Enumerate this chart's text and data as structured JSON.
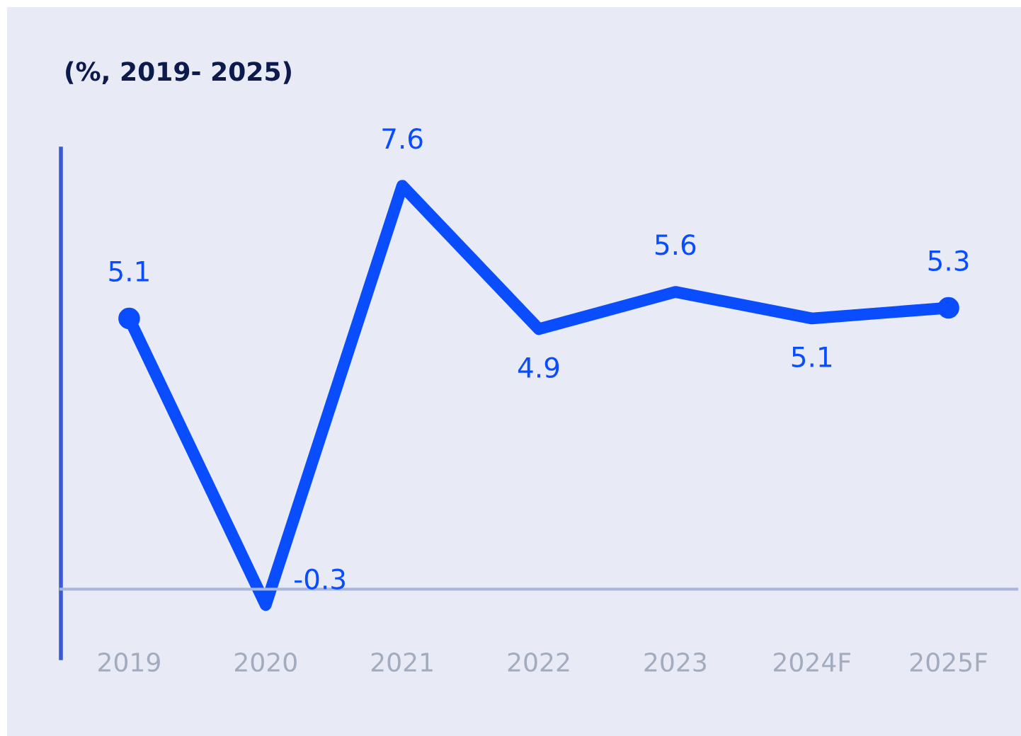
{
  "chart_data": {
    "type": "line",
    "title": "(%, 2019- 2025)",
    "categories": [
      "2019",
      "2020",
      "2021",
      "2022",
      "2023",
      "2024F",
      "2025F"
    ],
    "series": [
      {
        "color": "#0a4dff",
        "values": [
          5.1,
          -0.3,
          7.6,
          4.9,
          5.6,
          5.1,
          5.3
        ]
      }
    ],
    "ylim": [
      -1.3,
      8.3
    ],
    "tick_labels": "x",
    "data_labels": true,
    "grid": false,
    "legend": false,
    "line_style": "solid"
  }
}
